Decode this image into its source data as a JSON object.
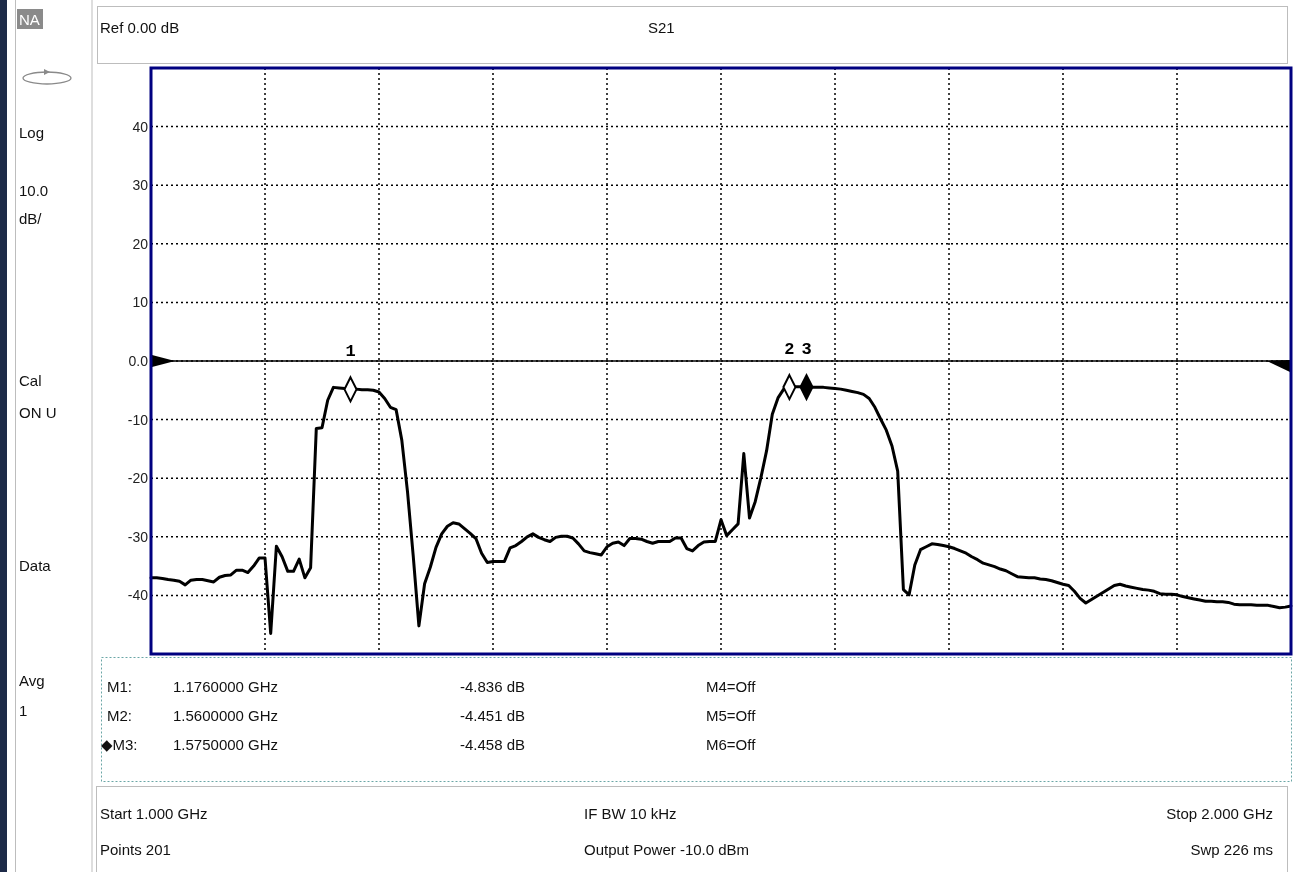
{
  "chart_data": {
    "type": "line",
    "title": "S21",
    "categories": [
      null,
      null,
      null,
      null,
      null,
      null,
      null,
      null,
      null,
      null,
      null,
      null,
      null,
      null,
      null,
      null,
      null,
      null,
      null,
      null,
      null,
      null,
      null,
      null,
      null,
      null,
      null,
      null,
      null,
      null,
      null,
      null,
      null,
      null,
      null,
      null,
      null,
      null,
      null,
      null,
      null,
      null,
      null,
      null,
      null,
      null,
      null,
      null,
      null,
      null,
      null,
      null,
      null,
      null,
      null,
      null,
      null,
      null,
      null,
      null,
      null,
      null,
      null,
      null,
      null,
      null,
      null,
      null,
      null,
      null,
      null,
      null,
      null,
      null,
      null,
      null,
      null,
      null,
      null,
      null,
      null,
      null,
      null,
      null,
      null,
      null,
      null,
      null,
      null,
      null,
      null,
      null,
      null,
      null,
      null,
      null,
      null,
      null,
      null,
      null,
      null,
      null,
      null,
      null,
      null,
      null,
      null,
      null,
      null,
      null,
      null,
      null,
      null,
      null,
      null,
      null,
      null,
      null,
      null,
      null,
      null,
      null,
      null,
      null,
      null,
      null,
      null,
      null,
      null,
      null,
      null,
      null,
      null,
      null,
      null,
      null,
      null,
      null,
      null,
      null,
      null,
      null,
      null,
      null,
      null,
      null,
      null,
      null,
      null,
      null,
      null,
      null,
      null,
      null,
      null,
      null,
      null,
      null,
      null,
      null,
      null,
      null,
      null,
      null,
      null,
      null,
      null,
      null,
      null,
      null,
      null,
      null,
      null,
      null,
      null,
      null,
      null,
      null,
      null,
      null,
      null,
      null,
      null,
      null,
      null,
      null,
      null,
      null,
      null,
      null,
      null,
      null,
      null,
      null,
      null,
      null,
      null,
      null,
      null,
      null,
      null
    ],
    "series": [
      {
        "color": "#000000",
        "values": [
          -37.0,
          -37.0,
          -37.1,
          -37.3,
          -37.4,
          -37.6,
          -38.2,
          -37.4,
          -37.3,
          -37.3,
          -37.5,
          -37.7,
          -36.9,
          -36.6,
          -36.5,
          -35.7,
          -35.7,
          -36.1,
          -35.0,
          -33.6,
          -33.6,
          -46.5,
          -31.6,
          -33.4,
          -35.9,
          -35.9,
          -33.8,
          -37.0,
          -35.3,
          -11.5,
          -11.4,
          -6.7,
          -4.5,
          -4.6,
          -4.7,
          -4.8,
          -4.8,
          -4.9,
          -4.9,
          -5.0,
          -5.3,
          -6.4,
          -7.9,
          -8.3,
          -13.5,
          -22.3,
          -33.2,
          -45.2,
          -38.0,
          -35.2,
          -31.8,
          -29.5,
          -28.2,
          -27.6,
          -27.8,
          -28.6,
          -29.4,
          -30.3,
          -32.8,
          -34.4,
          -34.2,
          -34.2,
          -34.2,
          -31.9,
          -31.5,
          -30.8,
          -30.0,
          -29.5,
          -30.1,
          -30.5,
          -30.8,
          -30.1,
          -29.9,
          -29.9,
          -30.2,
          -31.2,
          -32.4,
          -32.7,
          -32.9,
          -33.1,
          -31.7,
          -31.1,
          -30.9,
          -31.5,
          -30.3,
          -30.3,
          -30.4,
          -30.8,
          -31.1,
          -30.8,
          -30.8,
          -30.8,
          -30.2,
          -30.2,
          -32.0,
          -32.4,
          -31.5,
          -30.9,
          -30.8,
          -30.8,
          -27.1,
          -29.8,
          -28.8,
          -27.8,
          -15.8,
          -26.8,
          -24.0,
          -19.9,
          -15.3,
          -9.1,
          -6.3,
          -4.8,
          -4.451,
          -4.4,
          -4.4,
          -4.458,
          -4.5,
          -4.5,
          -4.5,
          -4.6,
          -4.7,
          -4.8,
          -5.0,
          -5.2,
          -5.4,
          -5.7,
          -6.4,
          -7.9,
          -9.9,
          -11.8,
          -14.5,
          -18.8,
          -39.0,
          -39.9,
          -34.8,
          -32.2,
          -31.7,
          -31.2,
          -31.3,
          -31.5,
          -31.7,
          -32.0,
          -32.4,
          -32.8,
          -33.4,
          -33.9,
          -34.5,
          -34.8,
          -35.1,
          -35.5,
          -35.8,
          -36.3,
          -36.8,
          -36.9,
          -37.0,
          -37.0,
          -37.2,
          -37.3,
          -37.5,
          -37.8,
          -38.1,
          -38.3,
          -39.3,
          -40.5,
          -41.3,
          -40.7,
          -40.1,
          -39.5,
          -38.9,
          -38.3,
          -38.1,
          -38.4,
          -38.6,
          -38.8,
          -39.0,
          -39.1,
          -39.3,
          -39.7,
          -39.8,
          -39.8,
          -39.9,
          -40.2,
          -40.4,
          -40.6,
          -40.8,
          -41.0,
          -41.0,
          -41.1,
          -41.1,
          -41.2,
          -41.5,
          -41.6,
          -41.6,
          -41.6,
          -41.7,
          -41.7,
          -41.7,
          -41.9,
          -42.1,
          -42.0,
          -41.8
        ]
      },
      {
        "type": "scatter",
        "marker": "diamond",
        "color": "#ffffff",
        "values": [
          null,
          null,
          null,
          null,
          null,
          null,
          null,
          null,
          null,
          null,
          null,
          null,
          null,
          null,
          null,
          null,
          null,
          null,
          null,
          null,
          null,
          null,
          null,
          null,
          null,
          null,
          null,
          null,
          null,
          null,
          null,
          null,
          null,
          null,
          null,
          -4.836,
          null,
          null,
          null,
          null,
          null,
          null,
          null,
          null,
          null,
          null,
          null,
          null,
          null,
          null,
          null,
          null,
          null,
          null,
          null,
          null,
          null,
          null,
          null,
          null,
          null,
          null,
          null,
          null,
          null,
          null,
          null,
          null,
          null,
          null,
          null,
          null,
          null,
          null,
          null,
          null,
          null,
          null,
          null,
          null,
          null,
          null,
          null,
          null,
          null,
          null,
          null,
          null,
          null,
          null,
          null,
          null,
          null,
          null,
          null,
          null,
          null,
          null,
          null,
          null,
          null,
          null,
          null,
          null,
          null,
          null,
          null,
          null,
          null,
          null,
          null,
          null,
          -4.451,
          null,
          null,
          null,
          null,
          null,
          null,
          null,
          null,
          null,
          null,
          null,
          null,
          null,
          null,
          null,
          null,
          null,
          null,
          null,
          null,
          null,
          null,
          null,
          null,
          null,
          null,
          null,
          null,
          null,
          null,
          null,
          null,
          null,
          null,
          null,
          null,
          null,
          null,
          null,
          null,
          null,
          null,
          null,
          null,
          null,
          null,
          null,
          null,
          null,
          null,
          null,
          null,
          null,
          null,
          null,
          null,
          null,
          null,
          null,
          null,
          null,
          null,
          null,
          null,
          null,
          null,
          null,
          null,
          null,
          null,
          null,
          null,
          null,
          null,
          null,
          null,
          null,
          null,
          null,
          null,
          null,
          null,
          null,
          null,
          null,
          null,
          null,
          null
        ]
      },
      {
        "type": "scatter",
        "marker": "diamond",
        "color": "#000000",
        "values": [
          null,
          null,
          null,
          null,
          null,
          null,
          null,
          null,
          null,
          null,
          null,
          null,
          null,
          null,
          null,
          null,
          null,
          null,
          null,
          null,
          null,
          null,
          null,
          null,
          null,
          null,
          null,
          null,
          null,
          null,
          null,
          null,
          null,
          null,
          null,
          null,
          null,
          null,
          null,
          null,
          null,
          null,
          null,
          null,
          null,
          null,
          null,
          null,
          null,
          null,
          null,
          null,
          null,
          null,
          null,
          null,
          null,
          null,
          null,
          null,
          null,
          null,
          null,
          null,
          null,
          null,
          null,
          null,
          null,
          null,
          null,
          null,
          null,
          null,
          null,
          null,
          null,
          null,
          null,
          null,
          null,
          null,
          null,
          null,
          null,
          null,
          null,
          null,
          null,
          null,
          null,
          null,
          null,
          null,
          null,
          null,
          null,
          null,
          null,
          null,
          null,
          null,
          null,
          null,
          null,
          null,
          null,
          null,
          null,
          null,
          null,
          null,
          null,
          null,
          null,
          -4.458,
          null,
          null,
          null,
          null,
          null,
          null,
          null,
          null,
          null,
          null,
          null,
          null,
          null,
          null,
          null,
          null,
          null,
          null,
          null,
          null,
          null,
          null,
          null,
          null,
          null,
          null,
          null,
          null,
          null,
          null,
          null,
          null,
          null,
          null,
          null,
          null,
          null,
          null,
          null,
          null,
          null,
          null,
          null,
          null,
          null,
          null,
          null,
          null,
          null,
          null,
          null,
          null,
          null,
          null,
          null,
          null,
          null,
          null,
          null,
          null,
          null,
          null,
          null,
          null,
          null,
          null,
          null,
          null,
          null,
          null,
          null,
          null,
          null,
          null,
          null,
          null,
          null,
          null,
          null,
          null,
          null,
          null,
          null,
          null,
          null
        ]
      }
    ],
    "ylim": [
      -50,
      50
    ],
    "yticks": [
      -40,
      -30,
      -20,
      -10,
      {
        "value": 0,
        "label": "0.0"
      },
      10,
      20,
      30,
      40
    ],
    "tick_labels": "y",
    "grid": true,
    "line_style": "solid",
    "ref_lines": [
      {
        "axis": "y",
        "value": 0,
        "color": "#000000"
      }
    ],
    "annotations": [
      "NA",
      "Log",
      "10.0",
      "dB/",
      "Cal",
      "ON U",
      "Data",
      "Avg",
      "1",
      "Ref 0.00 dB",
      "M1:",
      "1.1760000 GHz",
      "-4.836 dB",
      "M4=Off",
      "M2:",
      "1.5600000 GHz",
      "-4.451 dB",
      "M5=Off",
      "◆M3:",
      "1.5750000 GHz",
      "-4.458 dB",
      "M6=Off",
      "Start 1.000 GHz",
      "IF BW 10 kHz",
      "Stop 2.000 GHz",
      "Points 201",
      "Output Power -10.0 dBm",
      "Swp 226 ms",
      {
        "text": "1",
        "y": -4.836
      },
      {
        "text": "2",
        "y": -4.451
      },
      {
        "text": "3",
        "y": -4.458
      }
    ]
  }
}
